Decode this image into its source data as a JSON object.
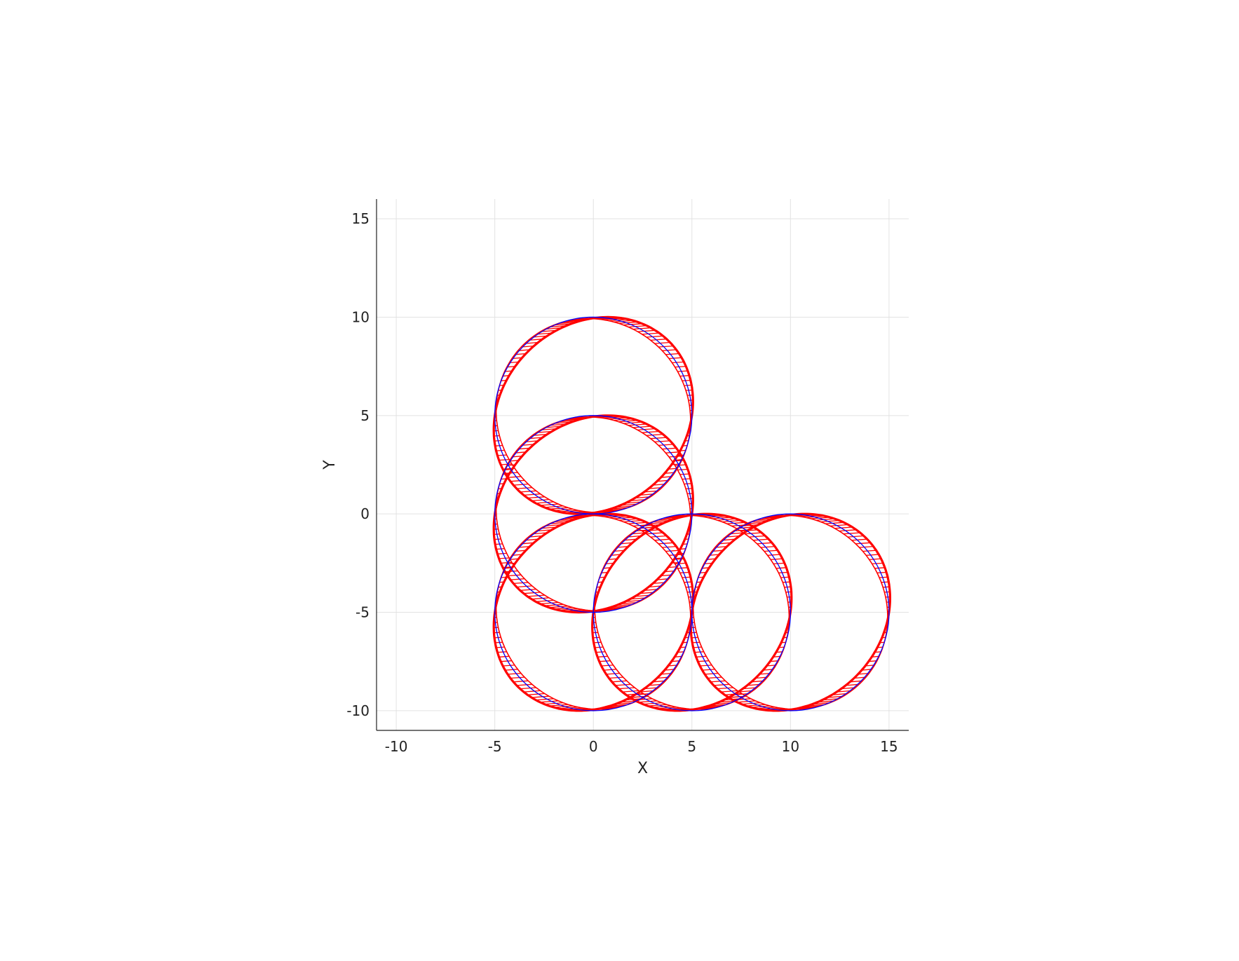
{
  "chart_data": {
    "type": "line",
    "title": "",
    "xlabel": "X",
    "ylabel": "Y",
    "xlim": [
      -11,
      16
    ],
    "ylim": [
      -11,
      16
    ],
    "xticks": [
      -10,
      -5,
      0,
      5,
      10,
      15
    ],
    "yticks": [
      -10,
      -5,
      0,
      5,
      10,
      15
    ],
    "xtick_labels": [
      "-10",
      "-5",
      "0",
      "5",
      "10",
      "15"
    ],
    "ytick_labels": [
      "-10",
      "-5",
      "0",
      "5",
      "10",
      "15"
    ],
    "grid": true,
    "legend": "none",
    "series": [
      {
        "color": "#0000ff",
        "style": "thin ellipse outlines",
        "ellipses": [
          {
            "cx": 0,
            "cy": 5,
            "rx": 5,
            "ry": 5
          },
          {
            "cx": 0,
            "cy": 0,
            "rx": 5,
            "ry": 5
          },
          {
            "cx": 0,
            "cy": -5,
            "rx": 5,
            "ry": 5
          },
          {
            "cx": 5,
            "cy": -5,
            "rx": 5,
            "ry": 5
          },
          {
            "cx": 10,
            "cy": -5,
            "rx": 5,
            "ry": 5
          }
        ]
      },
      {
        "color": "#ff0000",
        "style": "thick sheared ellipse bands",
        "ellipses": [
          {
            "cx": 0,
            "cy": 5,
            "rx": 5,
            "ry": 5
          },
          {
            "cx": 0,
            "cy": 0,
            "rx": 5,
            "ry": 5
          },
          {
            "cx": 0,
            "cy": -5,
            "rx": 5,
            "ry": 5
          },
          {
            "cx": 5,
            "cy": -5,
            "rx": 5,
            "ry": 5
          },
          {
            "cx": 10,
            "cy": -5,
            "rx": 5,
            "ry": 5
          }
        ]
      }
    ]
  }
}
